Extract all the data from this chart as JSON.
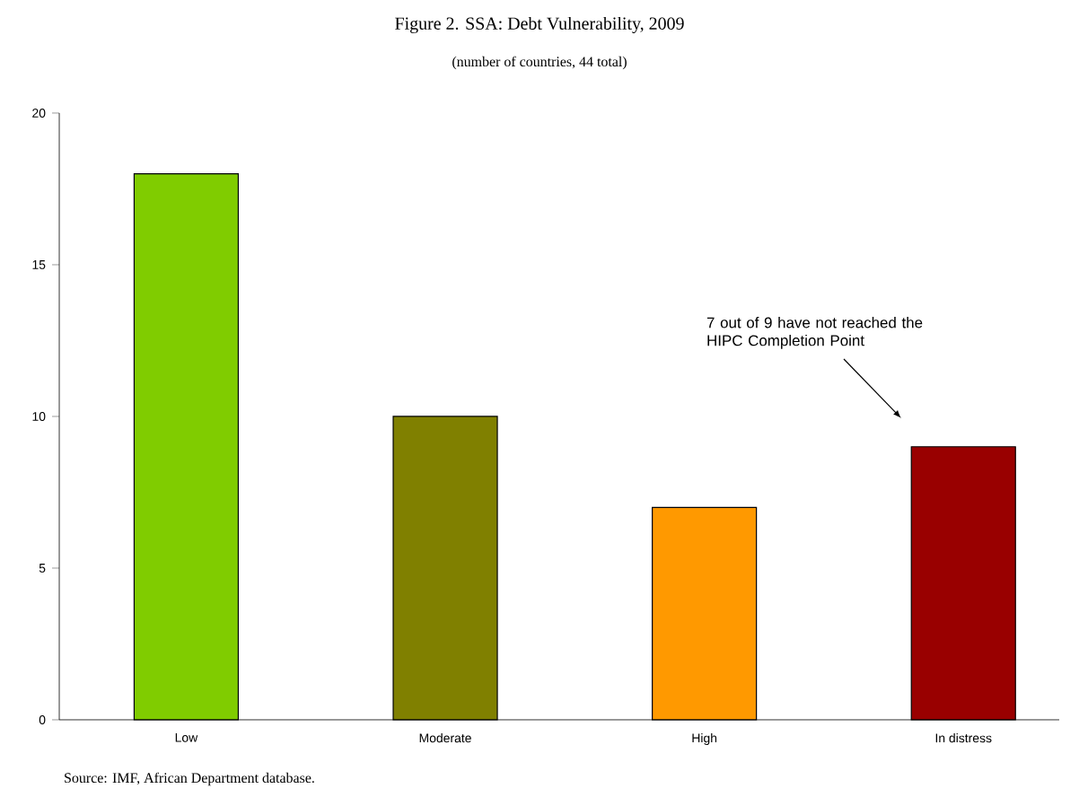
{
  "chart_data": {
    "type": "bar",
    "title": "Figure 2. SSA: Debt Vulnerability, 2009",
    "subtitle": "(number of countries, 44 total)",
    "categories": [
      "Low",
      "Moderate",
      "High",
      "In distress"
    ],
    "values": [
      18,
      10,
      7,
      9
    ],
    "colors": [
      "#80cc00",
      "#808000",
      "#ff9900",
      "#990000"
    ],
    "ylim": [
      0,
      20
    ],
    "yticks": [
      0,
      5,
      10,
      15,
      20
    ],
    "grid": false,
    "annotations": [
      "7 out of 9 have not reached the HIPC Completion Point",
      "Source: IMF, African Department database."
    ]
  }
}
